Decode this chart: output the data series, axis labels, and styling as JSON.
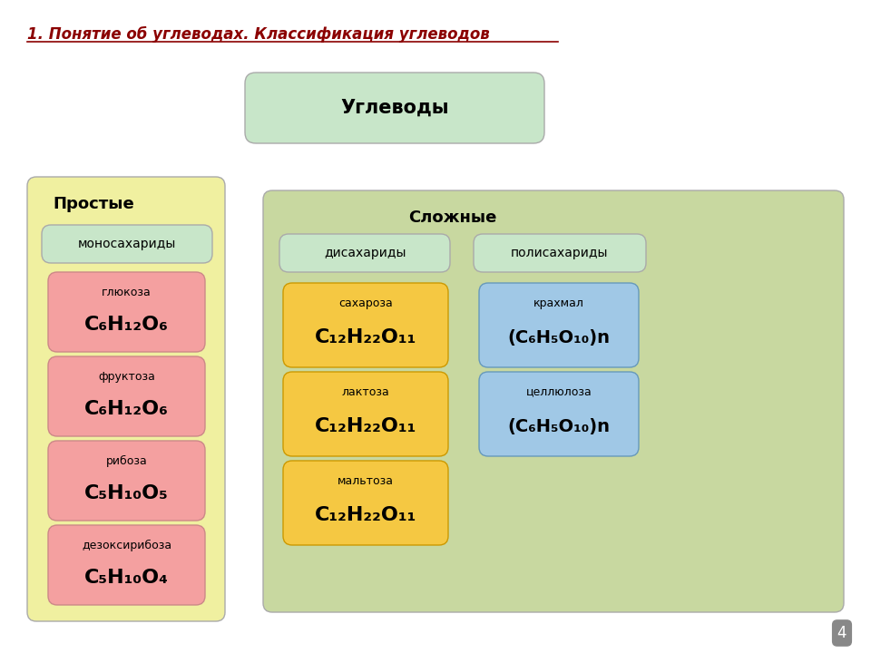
{
  "title": "1. Понятие об углеводах. Классификация углеводов",
  "title_color": "#8B0000",
  "bg_color": "#FFFFFF",
  "углеводы_label": "Углеводы",
  "углеводы_bg": "#C8E6C9",
  "простые_label": "Простые",
  "сложные_label": "Сложные",
  "simple_bg": "#F0F0A0",
  "complex_bg": "#C8D8A0",
  "mono_bg": "#C8E6C9",
  "di_bg": "#C8E6C9",
  "poly_bg": "#C8E6C9",
  "pink_bg": "#F4A0A0",
  "yellow_bg": "#F5C842",
  "blue_bg": "#A0C8E6",
  "page_number": "4",
  "monosaccharides": {
    "category": "моносахариды",
    "items": [
      {
        "name": "глюкоза",
        "formula": "C₆H₁₂O₆"
      },
      {
        "name": "фруктоза",
        "formula": "C₆H₁₂O₆"
      },
      {
        "name": "рибоза",
        "formula": "C₅H₁₀O₅"
      },
      {
        "name": "дезоксирибоза",
        "formula": "C₅H₁₀O₄"
      }
    ]
  },
  "disaccharides": {
    "category": "дисахариды",
    "items": [
      {
        "name": "сахароза",
        "formula": "C₁₂H₂₂O₁₁"
      },
      {
        "name": "лактоза",
        "formula": "C₁₂H₂₂O₁₁"
      },
      {
        "name": "мальтоза",
        "formula": "C₁₂H₂₂O₁₁"
      }
    ]
  },
  "polysaccharides": {
    "category": "полисахариды",
    "items": [
      {
        "name": "крахмал",
        "formula": "(C₆H₅O₁₀)n"
      },
      {
        "name": "целлюлоза",
        "formula": "(C₆H₅O₁₀)n"
      }
    ]
  }
}
